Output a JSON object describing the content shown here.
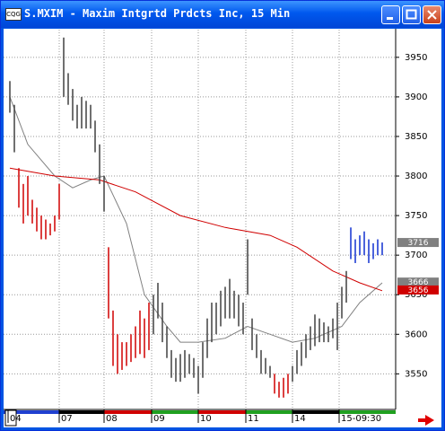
{
  "window": {
    "title": "S.MXIM - Maxim Intgrtd Prdcts Inc, 15 Min"
  },
  "chart_data": {
    "type": "ohlc",
    "xlim": [
      -0.4,
      84.4
    ],
    "ylim": [
      3505,
      3985
    ],
    "yticks": [
      3550,
      3600,
      3650,
      3700,
      3750,
      3800,
      3850,
      3900,
      3950
    ],
    "xticks": [
      {
        "value": -0.4,
        "label": "04"
      },
      {
        "value": 11,
        "label": "07"
      },
      {
        "value": 21,
        "label": "08"
      },
      {
        "value": 31.6,
        "label": "09"
      },
      {
        "value": 42,
        "label": "10"
      },
      {
        "value": 52.6,
        "label": "11"
      },
      {
        "value": 63,
        "label": "14"
      },
      {
        "value": 73.4,
        "label": "15-09:30"
      }
    ],
    "grid": true,
    "series": [
      {
        "color": "#404040",
        "x": [
          0,
          1
        ],
        "high": [
          3920,
          3890
        ],
        "low": [
          3880,
          3830
        ]
      },
      {
        "color": "#d00000",
        "x": [
          2,
          3,
          4,
          5,
          6,
          7,
          8,
          9,
          10,
          11
        ],
        "high": [
          3810,
          3790,
          3800,
          3770,
          3760,
          3750,
          3745,
          3740,
          3750,
          3790
        ],
        "low": [
          3760,
          3740,
          3750,
          3740,
          3730,
          3720,
          3720,
          3725,
          3730,
          3745
        ]
      },
      {
        "color": "#404040",
        "x": [
          12,
          13,
          14,
          15,
          16,
          17,
          18,
          19,
          20,
          21
        ],
        "high": [
          3975,
          3930,
          3910,
          3890,
          3900,
          3895,
          3890,
          3870,
          3840,
          3800
        ],
        "low": [
          3900,
          3890,
          3870,
          3860,
          3860,
          3860,
          3860,
          3830,
          3790,
          3755
        ]
      },
      {
        "color": "#d00000",
        "x": [
          22,
          23,
          24,
          25,
          26,
          27,
          28,
          29,
          30,
          31
        ],
        "high": [
          3710,
          3630,
          3600,
          3590,
          3590,
          3600,
          3610,
          3630,
          3620,
          3640
        ],
        "low": [
          3620,
          3560,
          3550,
          3555,
          3560,
          3565,
          3570,
          3575,
          3570,
          3580
        ]
      },
      {
        "color": "#404040",
        "x": [
          32,
          33,
          34,
          35,
          36,
          37,
          38,
          39,
          40,
          41,
          42,
          43,
          44,
          45,
          46,
          47,
          48,
          49,
          50,
          51,
          52,
          53,
          54,
          55,
          56,
          57,
          58
        ],
        "high": [
          3650,
          3665,
          3640,
          3610,
          3580,
          3570,
          3575,
          3580,
          3575,
          3570,
          3560,
          3590,
          3620,
          3640,
          3640,
          3655,
          3660,
          3670,
          3655,
          3650,
          3640,
          3720,
          3620,
          3600,
          3580,
          3570,
          3560
        ],
        "low": [
          3600,
          3620,
          3590,
          3570,
          3545,
          3540,
          3540,
          3545,
          3550,
          3545,
          3525,
          3545,
          3570,
          3590,
          3600,
          3610,
          3620,
          3620,
          3620,
          3610,
          3600,
          3650,
          3580,
          3570,
          3550,
          3550,
          3545
        ]
      },
      {
        "color": "#d00000",
        "x": [
          59,
          60,
          61,
          62
        ],
        "high": [
          3550,
          3540,
          3545,
          3550
        ],
        "low": [
          3525,
          3520,
          3520,
          3525
        ]
      },
      {
        "color": "#404040",
        "x": [
          63,
          64,
          65,
          66,
          67,
          68,
          69,
          70,
          71,
          72,
          73,
          74,
          75
        ],
        "high": [
          3560,
          3580,
          3590,
          3600,
          3610,
          3625,
          3620,
          3615,
          3610,
          3620,
          3640,
          3660,
          3680
        ],
        "low": [
          3540,
          3550,
          3560,
          3570,
          3580,
          3585,
          3590,
          3590,
          3590,
          3595,
          3580,
          3620,
          3640
        ]
      },
      {
        "color": "#1030d0",
        "x": [
          76,
          77,
          78,
          79,
          80,
          81,
          82,
          83
        ],
        "high": [
          3735,
          3720,
          3725,
          3730,
          3720,
          3715,
          3720,
          3716
        ],
        "low": [
          3695,
          3690,
          3700,
          3700,
          3690,
          3695,
          3700,
          3700
        ]
      }
    ],
    "lines": [
      {
        "color": "#808080",
        "x": [
          0,
          4,
          10,
          14,
          18,
          21,
          26,
          30,
          35,
          38,
          42,
          48,
          53,
          58,
          63,
          68,
          74,
          78,
          83
        ],
        "values": [
          3900,
          3840,
          3800,
          3785,
          3795,
          3800,
          3740,
          3650,
          3610,
          3590,
          3590,
          3595,
          3610,
          3600,
          3590,
          3595,
          3610,
          3640,
          3665
        ]
      },
      {
        "color": "#d00000",
        "x": [
          0,
          10,
          20,
          28,
          38,
          48,
          58,
          64,
          72,
          78,
          83
        ],
        "values": [
          3810,
          3800,
          3795,
          3780,
          3750,
          3735,
          3725,
          3710,
          3680,
          3665,
          3655
        ]
      }
    ],
    "price_markers": [
      {
        "value": 3716,
        "color": "#808080"
      },
      {
        "value": 3666,
        "color": "#808080"
      },
      {
        "value": 3656,
        "color": "#d00000"
      }
    ]
  }
}
